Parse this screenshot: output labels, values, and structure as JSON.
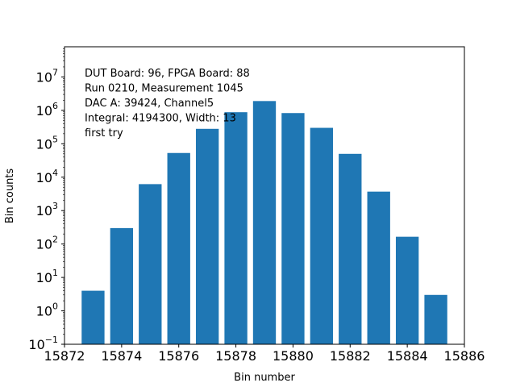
{
  "chart_data": {
    "type": "bar",
    "yscale": "log",
    "x": [
      15873,
      15874,
      15875,
      15876,
      15877,
      15878,
      15879,
      15880,
      15881,
      15882,
      15883,
      15884,
      15885
    ],
    "values": [
      4,
      300,
      6200,
      53000,
      280000,
      880000,
      1900000,
      830000,
      300000,
      50000,
      3700,
      165,
      3
    ],
    "xlabel": "Bin number",
    "ylabel": "Bin counts",
    "xlim": [
      15872,
      15886
    ],
    "ylim": [
      0.1,
      80000000
    ],
    "xticks": [
      15872,
      15874,
      15876,
      15878,
      15880,
      15882,
      15884,
      15886
    ],
    "yticks": [
      {
        "value": 0.1,
        "base": "10",
        "exp": "−1"
      },
      {
        "value": 1,
        "base": "10",
        "exp": "0"
      },
      {
        "value": 10,
        "base": "10",
        "exp": "1"
      },
      {
        "value": 100,
        "base": "10",
        "exp": "2"
      },
      {
        "value": 1000,
        "base": "10",
        "exp": "3"
      },
      {
        "value": 10000,
        "base": "10",
        "exp": "4"
      },
      {
        "value": 100000,
        "base": "10",
        "exp": "5"
      },
      {
        "value": 1000000,
        "base": "10",
        "exp": "6"
      },
      {
        "value": 10000000,
        "base": "10",
        "exp": "7"
      }
    ],
    "bar_color": "#1f77b4",
    "grid": false,
    "annotation_lines": [
      "DUT Board: 96, FPGA Board: 88",
      "Run 0210, Measurement 1045",
      "DAC A: 39424, Channel5",
      "Integral: 4194300, Width: 13",
      "first try"
    ]
  }
}
